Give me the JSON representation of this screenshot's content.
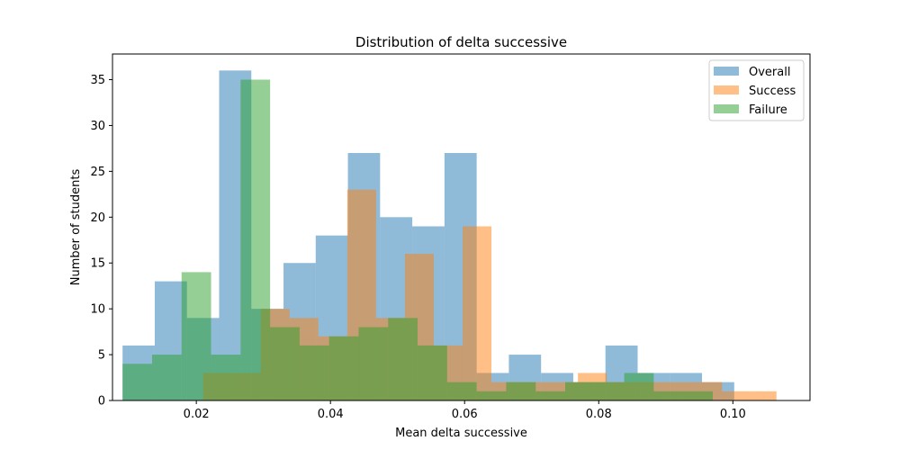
{
  "chart_data": {
    "type": "bar",
    "title": "Distribution of delta successive",
    "xlabel": "Mean delta successive",
    "ylabel": "Number of students",
    "xlim": [
      0.0075,
      0.1115
    ],
    "ylim": [
      0,
      37.8
    ],
    "xticks": [
      0.02,
      0.04,
      0.06,
      0.08,
      0.1
    ],
    "xtick_labels": [
      "0.02",
      "0.04",
      "0.06",
      "0.08",
      "0.10"
    ],
    "yticks": [
      0,
      5,
      10,
      15,
      20,
      25,
      30,
      35
    ],
    "ytick_labels": [
      "0",
      "5",
      "10",
      "15",
      "20",
      "25",
      "30",
      "35"
    ],
    "grid": false,
    "legend_position": "top-right",
    "series": [
      {
        "name": "Overall",
        "color": "#1f77b4",
        "opacity": 0.5,
        "edges": [
          0.009,
          0.0138,
          0.0186,
          0.0234,
          0.0282,
          0.033,
          0.0378,
          0.0426,
          0.0474,
          0.0522,
          0.057,
          0.0618,
          0.0666,
          0.0714,
          0.0762,
          0.081,
          0.0858,
          0.0906,
          0.0954,
          0.1002,
          0.105
        ],
        "values": [
          6,
          13,
          9,
          36,
          10,
          15,
          18,
          27,
          20,
          19,
          27,
          3,
          5,
          3,
          2,
          6,
          3,
          3,
          2,
          0
        ]
      },
      {
        "name": "Success",
        "color": "#ff7f0e",
        "opacity": 0.5,
        "edges": [
          0.021,
          0.0253,
          0.0296,
          0.0339,
          0.0382,
          0.0425,
          0.0468,
          0.0511,
          0.0554,
          0.0597,
          0.064,
          0.0683,
          0.0726,
          0.0769,
          0.0812,
          0.0855,
          0.0898,
          0.0941,
          0.0984,
          0.1027,
          0.1065
        ],
        "values": [
          3,
          3,
          10,
          9,
          7,
          23,
          9,
          16,
          6,
          19,
          2,
          2,
          2,
          3,
          2,
          2,
          2,
          2,
          1,
          1
        ]
      },
      {
        "name": "Failure",
        "color": "#2ca02c",
        "opacity": 0.5,
        "edges": [
          0.009,
          0.0134,
          0.0178,
          0.0222,
          0.0266,
          0.031,
          0.0354,
          0.0398,
          0.0442,
          0.0486,
          0.053,
          0.0574,
          0.0618,
          0.0662,
          0.0706,
          0.075,
          0.0794,
          0.0838,
          0.0882,
          0.0926,
          0.097
        ],
        "values": [
          4,
          5,
          14,
          5,
          35,
          8,
          6,
          7,
          8,
          9,
          6,
          2,
          1,
          2,
          1,
          2,
          2,
          3,
          1,
          1
        ]
      }
    ]
  }
}
